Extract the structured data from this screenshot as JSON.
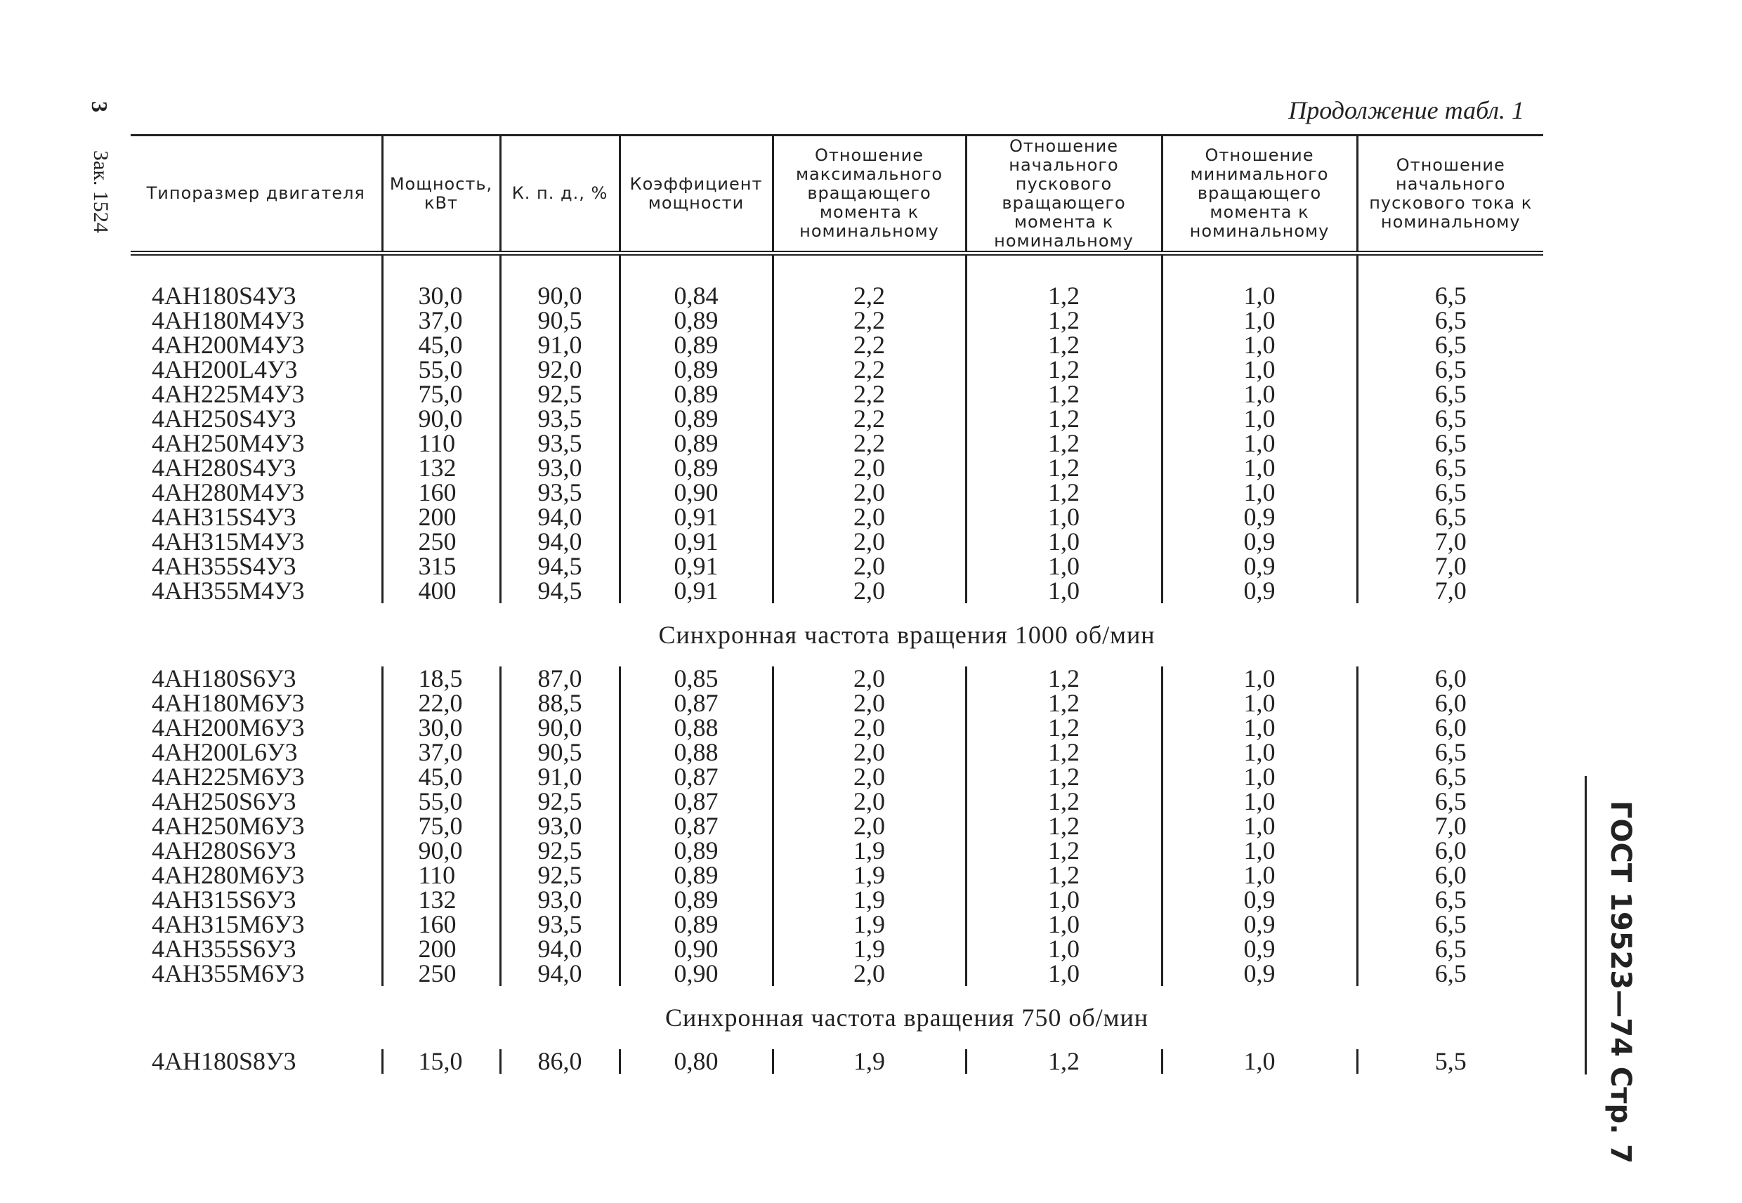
{
  "header": {
    "continuation": "Продолжение табл. 1"
  },
  "margin": {
    "page_number": "3",
    "order": "Зак. 1524",
    "standard": "ГОСТ 19523—74 Стр. 7"
  },
  "table": {
    "columns": [
      "Типоразмер двигателя",
      "Мощность, кВт",
      "К. п. д., %",
      "Коэффициент мощности",
      "Отношение максимального вращающего момента к номинальному",
      "Отношение начального пускового вращающего момента к номинальному",
      "Отношение минимального вращающего момента к номинальному",
      "Отношение начального пускового тока к номинальному"
    ],
    "sections": [
      {
        "rows": [
          [
            "4АН180S4У3",
            "30,0",
            "90,0",
            "0,84",
            "2,2",
            "1,2",
            "1,0",
            "6,5"
          ],
          [
            "4АН180М4У3",
            "37,0",
            "90,5",
            "0,89",
            "2,2",
            "1,2",
            "1,0",
            "6,5"
          ],
          [
            "4АН200М4У3",
            "45,0",
            "91,0",
            "0,89",
            "2,2",
            "1,2",
            "1,0",
            "6,5"
          ],
          [
            "4АН200L4У3",
            "55,0",
            "92,0",
            "0,89",
            "2,2",
            "1,2",
            "1,0",
            "6,5"
          ],
          [
            "4АН225М4У3",
            "75,0",
            "92,5",
            "0,89",
            "2,2",
            "1,2",
            "1,0",
            "6,5"
          ],
          [
            "4АН250S4У3",
            "90,0",
            "93,5",
            "0,89",
            "2,2",
            "1,2",
            "1,0",
            "6,5"
          ],
          [
            "4АН250М4У3",
            "110",
            "93,5",
            "0,89",
            "2,2",
            "1,2",
            "1,0",
            "6,5"
          ],
          [
            "4АН280S4У3",
            "132",
            "93,0",
            "0,89",
            "2,0",
            "1,2",
            "1,0",
            "6,5"
          ],
          [
            "4АН280М4У3",
            "160",
            "93,5",
            "0,90",
            "2,0",
            "1,2",
            "1,0",
            "6,5"
          ],
          [
            "4АН315S4У3",
            "200",
            "94,0",
            "0,91",
            "2,0",
            "1,0",
            "0,9",
            "6,5"
          ],
          [
            "4АН315М4У3",
            "250",
            "94,0",
            "0,91",
            "2,0",
            "1,0",
            "0,9",
            "7,0"
          ],
          [
            "4АН355S4У3",
            "315",
            "94,5",
            "0,91",
            "2,0",
            "1,0",
            "0,9",
            "7,0"
          ],
          [
            "4АН355М4У3",
            "400",
            "94,5",
            "0,91",
            "2,0",
            "1,0",
            "0,9",
            "7,0"
          ]
        ]
      },
      {
        "heading": "Синхронная частота вращения 1000 об/мин",
        "rows": [
          [
            "4АН180S6У3",
            "18,5",
            "87,0",
            "0,85",
            "2,0",
            "1,2",
            "1,0",
            "6,0"
          ],
          [
            "4АН180М6У3",
            "22,0",
            "88,5",
            "0,87",
            "2,0",
            "1,2",
            "1,0",
            "6,0"
          ],
          [
            "4АН200М6У3",
            "30,0",
            "90,0",
            "0,88",
            "2,0",
            "1,2",
            "1,0",
            "6,0"
          ],
          [
            "4АН200L6У3",
            "37,0",
            "90,5",
            "0,88",
            "2,0",
            "1,2",
            "1,0",
            "6,5"
          ],
          [
            "4АН225М6У3",
            "45,0",
            "91,0",
            "0,87",
            "2,0",
            "1,2",
            "1,0",
            "6,5"
          ],
          [
            "4АН250S6У3",
            "55,0",
            "92,5",
            "0,87",
            "2,0",
            "1,2",
            "1,0",
            "6,5"
          ],
          [
            "4АН250М6У3",
            "75,0",
            "93,0",
            "0,87",
            "2,0",
            "1,2",
            "1,0",
            "7,0"
          ],
          [
            "4АН280S6У3",
            "90,0",
            "92,5",
            "0,89",
            "1,9",
            "1,2",
            "1,0",
            "6,0"
          ],
          [
            "4АН280М6У3",
            "110",
            "92,5",
            "0,89",
            "1,9",
            "1,2",
            "1,0",
            "6,0"
          ],
          [
            "4АН315S6У3",
            "132",
            "93,0",
            "0,89",
            "1,9",
            "1,0",
            "0,9",
            "6,5"
          ],
          [
            "4АН315М6У3",
            "160",
            "93,5",
            "0,89",
            "1,9",
            "1,0",
            "0,9",
            "6,5"
          ],
          [
            "4АН355S6У3",
            "200",
            "94,0",
            "0,90",
            "1,9",
            "1,0",
            "0,9",
            "6,5"
          ],
          [
            "4АН355М6У3",
            "250",
            "94,0",
            "0,90",
            "2,0",
            "1,0",
            "0,9",
            "6,5"
          ]
        ]
      },
      {
        "heading": "Синхронная частота вращения 750 об/мин",
        "rows": [
          [
            "4АН180S8У3",
            "15,0",
            "86,0",
            "0,80",
            "1,9",
            "1,2",
            "1,0",
            "5,5"
          ]
        ]
      }
    ]
  }
}
